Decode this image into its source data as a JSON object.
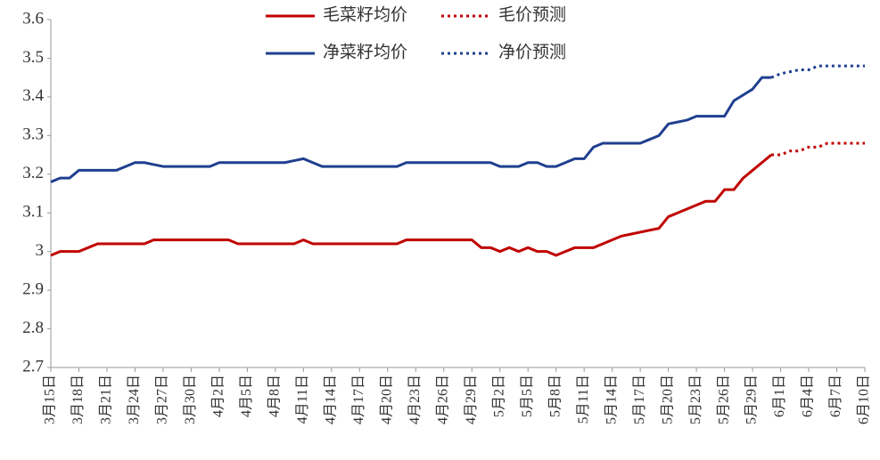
{
  "chart_data": {
    "type": "line",
    "categories": [
      "3月15日",
      null,
      null,
      "3月18日",
      null,
      null,
      "3月21日",
      null,
      null,
      "3月24日",
      null,
      null,
      "3月27日",
      null,
      null,
      "3月30日",
      null,
      null,
      "4月2日",
      null,
      null,
      "4月5日",
      null,
      null,
      "4月8日",
      null,
      null,
      "4月11日",
      null,
      null,
      "4月14日",
      null,
      null,
      "4月17日",
      null,
      null,
      "4月20日",
      null,
      null,
      "4月23日",
      null,
      null,
      "4月26日",
      null,
      null,
      "4月29日",
      null,
      null,
      "5月2日",
      null,
      null,
      "5月5日",
      null,
      null,
      "5月8日",
      null,
      null,
      "5月11日",
      null,
      null,
      "5月14日",
      null,
      null,
      "5月17日",
      null,
      null,
      "5月20日",
      null,
      null,
      "5月23日",
      null,
      null,
      "5月26日",
      null,
      null,
      "5月29日",
      null,
      null,
      "6月1日",
      null,
      null,
      "6月4日",
      null,
      null,
      "6月7日",
      null,
      null,
      "6月10日"
    ],
    "series": [
      {
        "name": "毛菜籽均价",
        "color": "#c00000",
        "style": "solid",
        "values": [
          2.99,
          3.0,
          3.0,
          3.0,
          3.01,
          3.02,
          3.02,
          3.02,
          3.02,
          3.02,
          3.02,
          3.03,
          3.03,
          3.03,
          3.03,
          3.03,
          3.03,
          3.03,
          3.03,
          3.03,
          3.02,
          3.02,
          3.02,
          3.02,
          3.02,
          3.02,
          3.02,
          3.03,
          3.02,
          3.02,
          3.02,
          3.02,
          3.02,
          3.02,
          3.02,
          3.02,
          3.02,
          3.02,
          3.03,
          3.03,
          3.03,
          3.03,
          3.03,
          3.03,
          3.03,
          3.03,
          3.01,
          3.01,
          3.0,
          3.01,
          3.0,
          3.01,
          3.0,
          3.0,
          2.99,
          3.0,
          3.01,
          3.01,
          3.01,
          3.02,
          3.03,
          3.04,
          3.045,
          3.05,
          3.055,
          3.06,
          3.09,
          3.1,
          3.11,
          3.12,
          3.13,
          3.13,
          3.16,
          3.16,
          3.19,
          3.21,
          3.23,
          3.25,
          null,
          null,
          null,
          null,
          null,
          null,
          null,
          null,
          null,
          null
        ]
      },
      {
        "name": "毛价预测",
        "color": "#c00000",
        "style": "dotted",
        "values": [
          null,
          null,
          null,
          null,
          null,
          null,
          null,
          null,
          null,
          null,
          null,
          null,
          null,
          null,
          null,
          null,
          null,
          null,
          null,
          null,
          null,
          null,
          null,
          null,
          null,
          null,
          null,
          null,
          null,
          null,
          null,
          null,
          null,
          null,
          null,
          null,
          null,
          null,
          null,
          null,
          null,
          null,
          null,
          null,
          null,
          null,
          null,
          null,
          null,
          null,
          null,
          null,
          null,
          null,
          null,
          null,
          null,
          null,
          null,
          null,
          null,
          null,
          null,
          null,
          null,
          null,
          null,
          null,
          null,
          null,
          null,
          null,
          null,
          null,
          null,
          null,
          null,
          3.25,
          3.25,
          3.26,
          3.26,
          3.27,
          3.27,
          3.28,
          3.28,
          3.28,
          3.28,
          3.28
        ]
      },
      {
        "name": "净菜籽均价",
        "color": "#1f3f8f",
        "style": "solid",
        "values": [
          3.18,
          3.19,
          3.19,
          3.21,
          3.21,
          3.21,
          3.21,
          3.21,
          3.22,
          3.23,
          3.23,
          3.225,
          3.22,
          3.22,
          3.22,
          3.22,
          3.22,
          3.22,
          3.23,
          3.23,
          3.23,
          3.23,
          3.23,
          3.23,
          3.23,
          3.23,
          3.235,
          3.24,
          3.23,
          3.22,
          3.22,
          3.22,
          3.22,
          3.22,
          3.22,
          3.22,
          3.22,
          3.22,
          3.23,
          3.23,
          3.23,
          3.23,
          3.23,
          3.23,
          3.23,
          3.23,
          3.23,
          3.23,
          3.22,
          3.22,
          3.22,
          3.23,
          3.23,
          3.22,
          3.22,
          3.23,
          3.24,
          3.24,
          3.27,
          3.28,
          3.28,
          3.28,
          3.28,
          3.28,
          3.29,
          3.3,
          3.33,
          3.335,
          3.34,
          3.35,
          3.35,
          3.35,
          3.35,
          3.39,
          3.405,
          3.42,
          3.45,
          3.45,
          null,
          null,
          null,
          null,
          null,
          null,
          null,
          null,
          null,
          null
        ]
      },
      {
        "name": "净价预测",
        "color": "#1f3f8f",
        "style": "dotted",
        "values": [
          null,
          null,
          null,
          null,
          null,
          null,
          null,
          null,
          null,
          null,
          null,
          null,
          null,
          null,
          null,
          null,
          null,
          null,
          null,
          null,
          null,
          null,
          null,
          null,
          null,
          null,
          null,
          null,
          null,
          null,
          null,
          null,
          null,
          null,
          null,
          null,
          null,
          null,
          null,
          null,
          null,
          null,
          null,
          null,
          null,
          null,
          null,
          null,
          null,
          null,
          null,
          null,
          null,
          null,
          null,
          null,
          null,
          null,
          null,
          null,
          null,
          null,
          null,
          null,
          null,
          null,
          null,
          null,
          null,
          null,
          null,
          null,
          null,
          null,
          null,
          null,
          null,
          3.45,
          3.46,
          3.465,
          3.47,
          3.47,
          3.48,
          3.48,
          3.48,
          3.48,
          3.48,
          3.48
        ]
      }
    ],
    "ylim": [
      2.7,
      3.6
    ],
    "yticks": [
      2.7,
      2.8,
      2.9,
      3,
      3.1,
      3.2,
      3.3,
      3.4,
      3.5,
      3.6
    ],
    "grid": false
  }
}
